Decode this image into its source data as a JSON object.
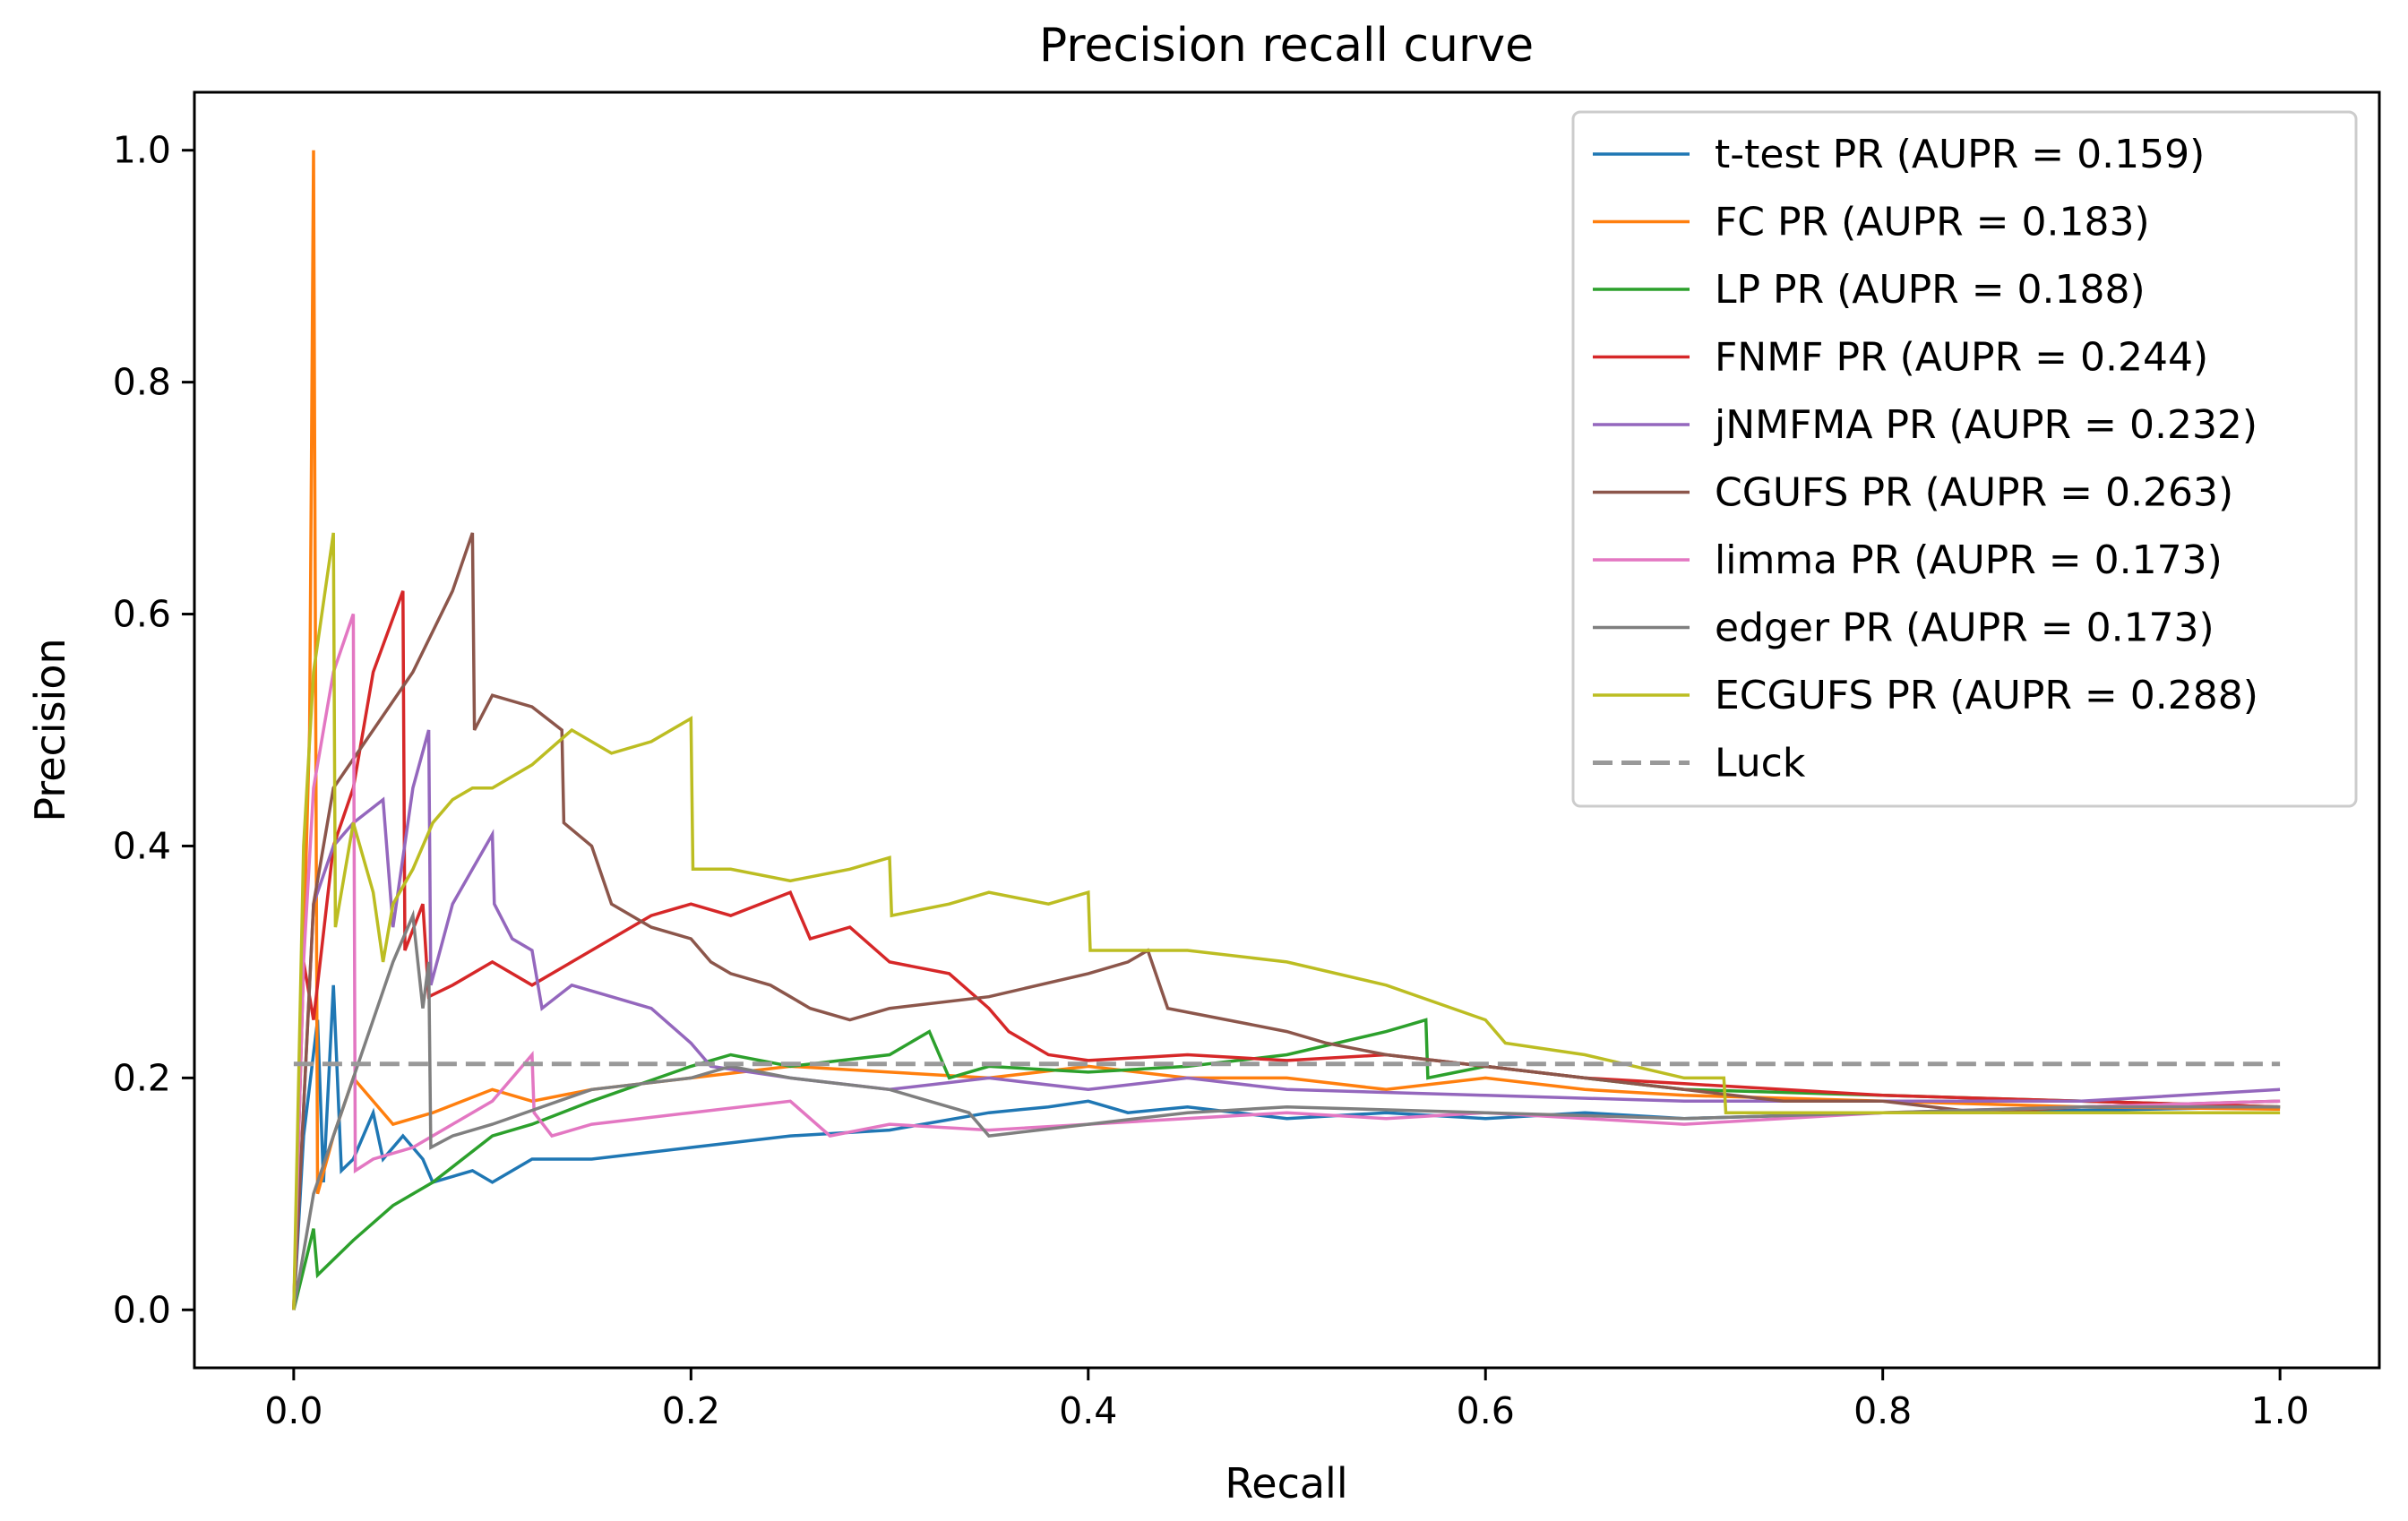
{
  "chart_data": {
    "type": "line",
    "title": "Precision recall curve",
    "xlabel": "Recall",
    "ylabel": "Precision",
    "xlim": [
      -0.05,
      1.05
    ],
    "ylim": [
      -0.05,
      1.05
    ],
    "xticks": [
      0.0,
      0.2,
      0.4,
      0.6,
      0.8,
      1.0
    ],
    "xtick_labels": [
      "0.0",
      "0.2",
      "0.4",
      "0.6",
      "0.8",
      "1.0"
    ],
    "yticks": [
      0.0,
      0.2,
      0.4,
      0.6,
      0.8,
      1.0
    ],
    "ytick_labels": [
      "0.0",
      "0.2",
      "0.4",
      "0.6",
      "0.8",
      "1.0"
    ],
    "grid": false,
    "legend_position": "top-right",
    "series": [
      {
        "name": "t-test PR (AUPR = 0.159)",
        "color": "#1f77b4",
        "dash": "solid",
        "points": [
          [
            0,
            0
          ],
          [
            0.005,
            0.15
          ],
          [
            0.012,
            0.25
          ],
          [
            0.015,
            0.11
          ],
          [
            0.02,
            0.28
          ],
          [
            0.024,
            0.12
          ],
          [
            0.03,
            0.13
          ],
          [
            0.04,
            0.17
          ],
          [
            0.045,
            0.13
          ],
          [
            0.055,
            0.15
          ],
          [
            0.065,
            0.13
          ],
          [
            0.07,
            0.11
          ],
          [
            0.09,
            0.12
          ],
          [
            0.1,
            0.11
          ],
          [
            0.12,
            0.13
          ],
          [
            0.15,
            0.13
          ],
          [
            0.2,
            0.14
          ],
          [
            0.25,
            0.15
          ],
          [
            0.3,
            0.155
          ],
          [
            0.35,
            0.17
          ],
          [
            0.38,
            0.175
          ],
          [
            0.4,
            0.18
          ],
          [
            0.42,
            0.17
          ],
          [
            0.45,
            0.175
          ],
          [
            0.5,
            0.165
          ],
          [
            0.55,
            0.17
          ],
          [
            0.6,
            0.165
          ],
          [
            0.65,
            0.17
          ],
          [
            0.7,
            0.165
          ],
          [
            0.8,
            0.17
          ],
          [
            0.9,
            0.172
          ],
          [
            1.0,
            0.175
          ]
        ]
      },
      {
        "name": "FC PR (AUPR = 0.183)",
        "color": "#ff7f0e",
        "dash": "solid",
        "points": [
          [
            0,
            0
          ],
          [
            0.008,
            0.5
          ],
          [
            0.01,
            1.0
          ],
          [
            0.012,
            0.1
          ],
          [
            0.02,
            0.15
          ],
          [
            0.03,
            0.2
          ],
          [
            0.05,
            0.16
          ],
          [
            0.07,
            0.17
          ],
          [
            0.1,
            0.19
          ],
          [
            0.12,
            0.18
          ],
          [
            0.15,
            0.19
          ],
          [
            0.2,
            0.2
          ],
          [
            0.25,
            0.21
          ],
          [
            0.3,
            0.205
          ],
          [
            0.35,
            0.2
          ],
          [
            0.4,
            0.21
          ],
          [
            0.45,
            0.2
          ],
          [
            0.5,
            0.2
          ],
          [
            0.55,
            0.19
          ],
          [
            0.6,
            0.2
          ],
          [
            0.65,
            0.19
          ],
          [
            0.7,
            0.185
          ],
          [
            0.8,
            0.18
          ],
          [
            0.9,
            0.175
          ],
          [
            1.0,
            0.173
          ]
        ]
      },
      {
        "name": "LP PR (AUPR = 0.188)",
        "color": "#2ca02c",
        "dash": "solid",
        "points": [
          [
            0,
            0
          ],
          [
            0.01,
            0.07
          ],
          [
            0.012,
            0.03
          ],
          [
            0.03,
            0.06
          ],
          [
            0.05,
            0.09
          ],
          [
            0.07,
            0.11
          ],
          [
            0.1,
            0.15
          ],
          [
            0.12,
            0.16
          ],
          [
            0.15,
            0.18
          ],
          [
            0.2,
            0.21
          ],
          [
            0.22,
            0.22
          ],
          [
            0.25,
            0.21
          ],
          [
            0.3,
            0.22
          ],
          [
            0.32,
            0.24
          ],
          [
            0.33,
            0.2
          ],
          [
            0.35,
            0.21
          ],
          [
            0.4,
            0.205
          ],
          [
            0.45,
            0.21
          ],
          [
            0.5,
            0.22
          ],
          [
            0.55,
            0.24
          ],
          [
            0.57,
            0.25
          ],
          [
            0.571,
            0.2
          ],
          [
            0.6,
            0.21
          ],
          [
            0.65,
            0.2
          ],
          [
            0.7,
            0.19
          ],
          [
            0.8,
            0.185
          ],
          [
            0.9,
            0.18
          ],
          [
            1.0,
            0.175
          ]
        ]
      },
      {
        "name": "FNMF PR (AUPR = 0.244)",
        "color": "#d62728",
        "dash": "solid",
        "points": [
          [
            0,
            0
          ],
          [
            0.005,
            0.3
          ],
          [
            0.01,
            0.25
          ],
          [
            0.02,
            0.4
          ],
          [
            0.03,
            0.45
          ],
          [
            0.04,
            0.55
          ],
          [
            0.055,
            0.62
          ],
          [
            0.056,
            0.31
          ],
          [
            0.065,
            0.35
          ],
          [
            0.068,
            0.27
          ],
          [
            0.08,
            0.28
          ],
          [
            0.1,
            0.3
          ],
          [
            0.12,
            0.28
          ],
          [
            0.14,
            0.3
          ],
          [
            0.16,
            0.32
          ],
          [
            0.18,
            0.34
          ],
          [
            0.2,
            0.35
          ],
          [
            0.22,
            0.34
          ],
          [
            0.25,
            0.36
          ],
          [
            0.26,
            0.32
          ],
          [
            0.28,
            0.33
          ],
          [
            0.3,
            0.3
          ],
          [
            0.33,
            0.29
          ],
          [
            0.35,
            0.26
          ],
          [
            0.36,
            0.24
          ],
          [
            0.38,
            0.22
          ],
          [
            0.4,
            0.215
          ],
          [
            0.45,
            0.22
          ],
          [
            0.5,
            0.215
          ],
          [
            0.55,
            0.22
          ],
          [
            0.6,
            0.21
          ],
          [
            0.65,
            0.2
          ],
          [
            0.7,
            0.195
          ],
          [
            0.75,
            0.19
          ],
          [
            0.8,
            0.185
          ],
          [
            0.9,
            0.18
          ],
          [
            1.0,
            0.175
          ]
        ]
      },
      {
        "name": "jNMFMA PR (AUPR = 0.232)",
        "color": "#9467bd",
        "dash": "solid",
        "points": [
          [
            0,
            0
          ],
          [
            0.01,
            0.35
          ],
          [
            0.02,
            0.4
          ],
          [
            0.03,
            0.42
          ],
          [
            0.045,
            0.44
          ],
          [
            0.05,
            0.33
          ],
          [
            0.06,
            0.45
          ],
          [
            0.068,
            0.5
          ],
          [
            0.069,
            0.28
          ],
          [
            0.08,
            0.35
          ],
          [
            0.09,
            0.38
          ],
          [
            0.1,
            0.41
          ],
          [
            0.101,
            0.35
          ],
          [
            0.11,
            0.32
          ],
          [
            0.12,
            0.31
          ],
          [
            0.125,
            0.26
          ],
          [
            0.14,
            0.28
          ],
          [
            0.16,
            0.27
          ],
          [
            0.18,
            0.26
          ],
          [
            0.2,
            0.23
          ],
          [
            0.21,
            0.21
          ],
          [
            0.25,
            0.2
          ],
          [
            0.3,
            0.19
          ],
          [
            0.35,
            0.2
          ],
          [
            0.4,
            0.19
          ],
          [
            0.45,
            0.2
          ],
          [
            0.5,
            0.19
          ],
          [
            0.6,
            0.185
          ],
          [
            0.7,
            0.18
          ],
          [
            0.8,
            0.18
          ],
          [
            0.9,
            0.18
          ],
          [
            1.0,
            0.19
          ]
        ]
      },
      {
        "name": "CGUFS PR (AUPR = 0.263)",
        "color": "#8c564b",
        "dash": "solid",
        "points": [
          [
            0,
            0
          ],
          [
            0.01,
            0.35
          ],
          [
            0.02,
            0.45
          ],
          [
            0.04,
            0.5
          ],
          [
            0.06,
            0.55
          ],
          [
            0.08,
            0.62
          ],
          [
            0.09,
            0.67
          ],
          [
            0.091,
            0.5
          ],
          [
            0.1,
            0.53
          ],
          [
            0.12,
            0.52
          ],
          [
            0.135,
            0.5
          ],
          [
            0.136,
            0.42
          ],
          [
            0.15,
            0.4
          ],
          [
            0.16,
            0.35
          ],
          [
            0.18,
            0.33
          ],
          [
            0.2,
            0.32
          ],
          [
            0.21,
            0.3
          ],
          [
            0.22,
            0.29
          ],
          [
            0.24,
            0.28
          ],
          [
            0.25,
            0.27
          ],
          [
            0.26,
            0.26
          ],
          [
            0.28,
            0.25
          ],
          [
            0.3,
            0.26
          ],
          [
            0.35,
            0.27
          ],
          [
            0.4,
            0.29
          ],
          [
            0.42,
            0.3
          ],
          [
            0.43,
            0.31
          ],
          [
            0.44,
            0.26
          ],
          [
            0.47,
            0.25
          ],
          [
            0.5,
            0.24
          ],
          [
            0.52,
            0.23
          ],
          [
            0.55,
            0.22
          ],
          [
            0.6,
            0.21
          ],
          [
            0.65,
            0.2
          ],
          [
            0.7,
            0.19
          ],
          [
            0.75,
            0.18
          ],
          [
            0.8,
            0.18
          ],
          [
            0.85,
            0.17
          ],
          [
            0.9,
            0.175
          ],
          [
            1.0,
            0.18
          ]
        ]
      },
      {
        "name": "limma PR (AUPR = 0.173)",
        "color": "#e377c2",
        "dash": "solid",
        "points": [
          [
            0,
            0
          ],
          [
            0.005,
            0.3
          ],
          [
            0.01,
            0.45
          ],
          [
            0.02,
            0.55
          ],
          [
            0.03,
            0.6
          ],
          [
            0.031,
            0.12
          ],
          [
            0.04,
            0.13
          ],
          [
            0.06,
            0.14
          ],
          [
            0.08,
            0.16
          ],
          [
            0.1,
            0.18
          ],
          [
            0.12,
            0.22
          ],
          [
            0.121,
            0.17
          ],
          [
            0.13,
            0.15
          ],
          [
            0.15,
            0.16
          ],
          [
            0.2,
            0.17
          ],
          [
            0.25,
            0.18
          ],
          [
            0.27,
            0.15
          ],
          [
            0.3,
            0.16
          ],
          [
            0.35,
            0.155
          ],
          [
            0.4,
            0.16
          ],
          [
            0.5,
            0.17
          ],
          [
            0.55,
            0.165
          ],
          [
            0.6,
            0.17
          ],
          [
            0.7,
            0.16
          ],
          [
            0.8,
            0.17
          ],
          [
            0.9,
            0.175
          ],
          [
            1.0,
            0.18
          ]
        ]
      },
      {
        "name": "edger PR (AUPR = 0.173)",
        "color": "#7f7f7f",
        "dash": "solid",
        "points": [
          [
            0,
            0
          ],
          [
            0.01,
            0.1
          ],
          [
            0.02,
            0.15
          ],
          [
            0.03,
            0.2
          ],
          [
            0.04,
            0.25
          ],
          [
            0.05,
            0.3
          ],
          [
            0.06,
            0.34
          ],
          [
            0.065,
            0.26
          ],
          [
            0.068,
            0.3
          ],
          [
            0.069,
            0.14
          ],
          [
            0.08,
            0.15
          ],
          [
            0.1,
            0.16
          ],
          [
            0.15,
            0.19
          ],
          [
            0.2,
            0.2
          ],
          [
            0.22,
            0.21
          ],
          [
            0.25,
            0.2
          ],
          [
            0.3,
            0.19
          ],
          [
            0.32,
            0.18
          ],
          [
            0.34,
            0.17
          ],
          [
            0.35,
            0.15
          ],
          [
            0.4,
            0.16
          ],
          [
            0.45,
            0.17
          ],
          [
            0.5,
            0.175
          ],
          [
            0.6,
            0.17
          ],
          [
            0.7,
            0.165
          ],
          [
            0.8,
            0.17
          ],
          [
            0.9,
            0.175
          ],
          [
            1.0,
            0.175
          ]
        ]
      },
      {
        "name": "ECGUFS PR (AUPR = 0.288)",
        "color": "#bcbd22",
        "dash": "solid",
        "points": [
          [
            0,
            0
          ],
          [
            0.005,
            0.4
          ],
          [
            0.01,
            0.55
          ],
          [
            0.02,
            0.67
          ],
          [
            0.021,
            0.33
          ],
          [
            0.03,
            0.42
          ],
          [
            0.04,
            0.36
          ],
          [
            0.045,
            0.3
          ],
          [
            0.05,
            0.35
          ],
          [
            0.06,
            0.38
          ],
          [
            0.07,
            0.42
          ],
          [
            0.08,
            0.44
          ],
          [
            0.09,
            0.45
          ],
          [
            0.1,
            0.45
          ],
          [
            0.12,
            0.47
          ],
          [
            0.14,
            0.5
          ],
          [
            0.16,
            0.48
          ],
          [
            0.18,
            0.49
          ],
          [
            0.19,
            0.5
          ],
          [
            0.2,
            0.51
          ],
          [
            0.201,
            0.38
          ],
          [
            0.22,
            0.38
          ],
          [
            0.25,
            0.37
          ],
          [
            0.28,
            0.38
          ],
          [
            0.3,
            0.39
          ],
          [
            0.301,
            0.34
          ],
          [
            0.33,
            0.35
          ],
          [
            0.35,
            0.36
          ],
          [
            0.38,
            0.35
          ],
          [
            0.4,
            0.36
          ],
          [
            0.401,
            0.31
          ],
          [
            0.45,
            0.31
          ],
          [
            0.5,
            0.3
          ],
          [
            0.55,
            0.28
          ],
          [
            0.6,
            0.25
          ],
          [
            0.61,
            0.23
          ],
          [
            0.65,
            0.22
          ],
          [
            0.7,
            0.2
          ],
          [
            0.72,
            0.2
          ],
          [
            0.721,
            0.17
          ],
          [
            0.8,
            0.17
          ],
          [
            0.9,
            0.17
          ],
          [
            1.0,
            0.17
          ]
        ]
      },
      {
        "name": "Luck",
        "color": "#999999",
        "dash": "dashed",
        "points": [
          [
            0,
            0.212
          ],
          [
            1.0,
            0.212
          ]
        ]
      }
    ]
  }
}
